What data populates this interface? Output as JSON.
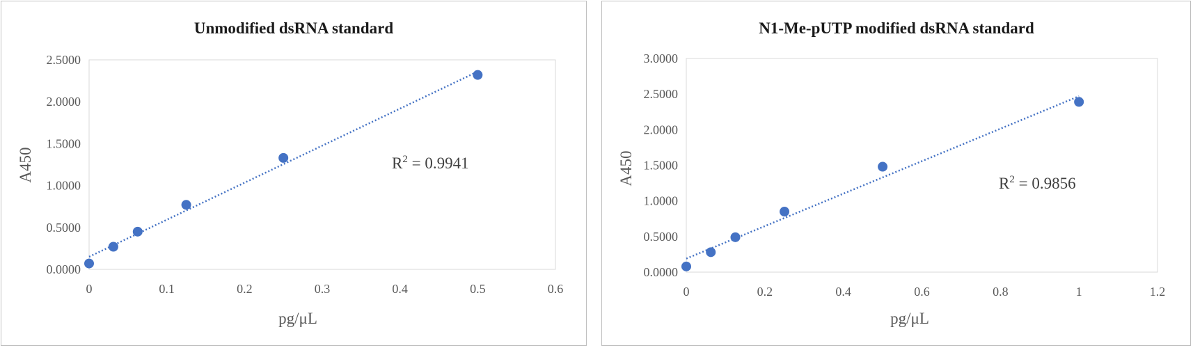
{
  "chart_data": [
    {
      "type": "scatter",
      "title": "Unmodified dsRNA standard",
      "xlabel": "pg/μL",
      "ylabel": "A450",
      "xlim": [
        0,
        0.6
      ],
      "ylim": [
        0,
        2.5
      ],
      "x_ticks": [
        0,
        0.1,
        0.2,
        0.3,
        0.4,
        0.5,
        0.6
      ],
      "x_tick_labels": [
        "0",
        "0.1",
        "0.2",
        "0.3",
        "0.4",
        "0.5",
        "0.6"
      ],
      "y_ticks": [
        0,
        0.5,
        1.0,
        1.5,
        2.0,
        2.5
      ],
      "y_tick_labels": [
        "0.0000",
        "0.5000",
        "1.0000",
        "1.5000",
        "2.0000",
        "2.5000"
      ],
      "series": [
        {
          "x": [
            0,
            0.03125,
            0.0625,
            0.125,
            0.25,
            0.5
          ],
          "y": [
            0.07,
            0.27,
            0.45,
            0.77,
            1.33,
            2.32
          ]
        }
      ],
      "trendline": {
        "style": "dotted",
        "from": [
          0,
          0.15
        ],
        "to": [
          0.5,
          2.36
        ]
      },
      "r2_prefix": "R",
      "r2_sup": "2",
      "r2_value": " = 0.9941",
      "marker_color": "#4472c4",
      "grid": false
    },
    {
      "type": "scatter",
      "title": "N1-Me-pUTP modified dsRNA standard",
      "xlabel": "pg/μL",
      "ylabel": "A450",
      "xlim": [
        0,
        1.2
      ],
      "ylim": [
        0,
        3.0
      ],
      "x_ticks": [
        0,
        0.2,
        0.4,
        0.6,
        0.8,
        1.0,
        1.2
      ],
      "x_tick_labels": [
        "0",
        "0.2",
        "0.4",
        "0.6",
        "0.8",
        "1",
        "1.2"
      ],
      "y_ticks": [
        0,
        0.5,
        1.0,
        1.5,
        2.0,
        2.5,
        3.0
      ],
      "y_tick_labels": [
        "0.0000",
        "0.5000",
        "1.0000",
        "1.5000",
        "2.0000",
        "2.5000",
        "3.0000"
      ],
      "series": [
        {
          "x": [
            0,
            0.0625,
            0.125,
            0.25,
            0.5,
            1.0
          ],
          "y": [
            0.08,
            0.28,
            0.49,
            0.85,
            1.48,
            2.39
          ]
        }
      ],
      "trendline": {
        "style": "dotted",
        "from": [
          0,
          0.19
        ],
        "to": [
          1.0,
          2.47
        ]
      },
      "r2_prefix": "R",
      "r2_sup": "2",
      "r2_value": " = 0.9856",
      "marker_color": "#4472c4",
      "grid": false
    }
  ]
}
